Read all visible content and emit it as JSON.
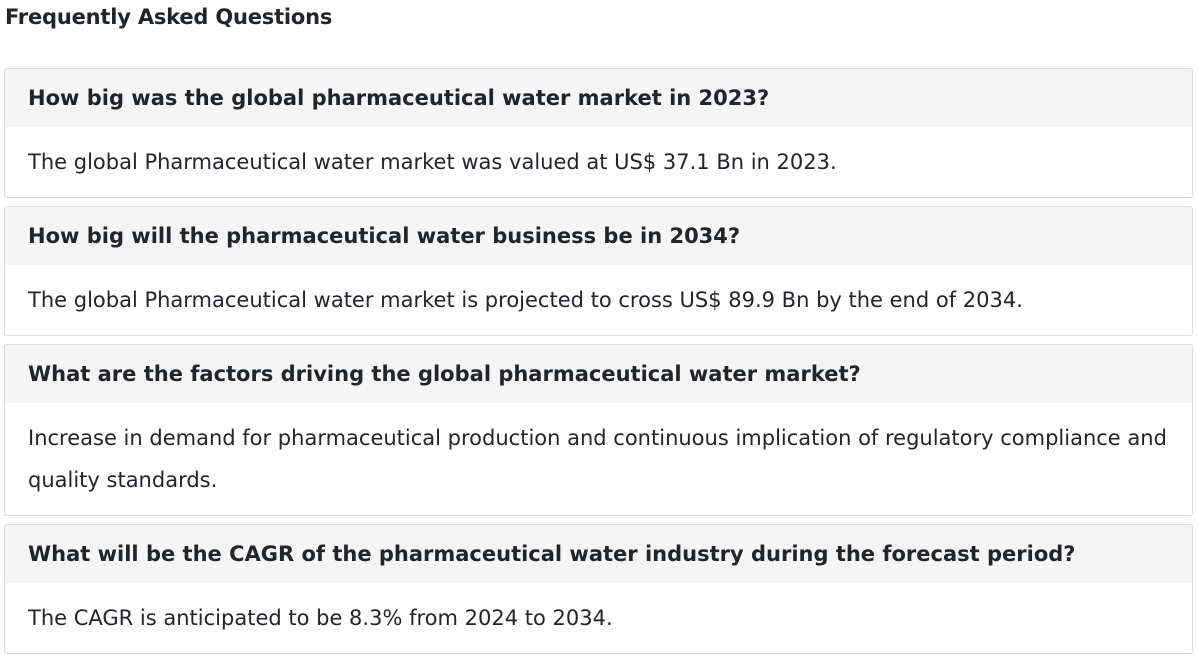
{
  "faq": {
    "title": "Frequently Asked Questions",
    "items": [
      {
        "question": "How big was the global pharmaceutical water market in 2023?",
        "answer": "The global Pharmaceutical water market was valued at US$ 37.1 Bn in 2023."
      },
      {
        "question": "How big will the pharmaceutical water business be in 2034?",
        "answer": "The global Pharmaceutical water market is projected to cross US$ 89.9 Bn by the end of 2034."
      },
      {
        "question": "What are the factors driving the global pharmaceutical water market?",
        "answer": "Increase in demand for pharmaceutical production and continuous implication of regulatory compliance and quality standards."
      },
      {
        "question": "What will be the CAGR of the pharmaceutical water industry during the forecast period?",
        "answer": "The CAGR is anticipated to be 8.3% from 2024 to 2034."
      }
    ]
  }
}
